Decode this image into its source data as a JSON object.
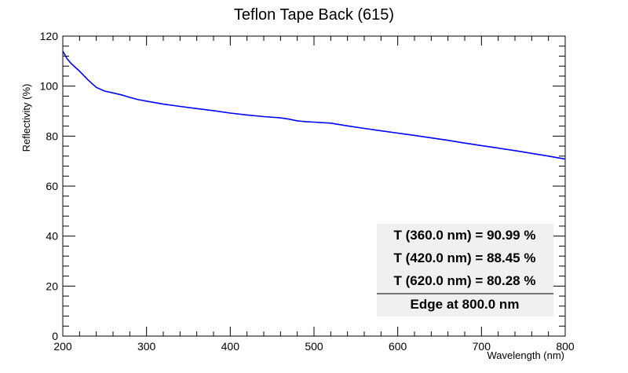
{
  "chart_data": {
    "type": "line",
    "title": "Teflon Tape Back (615)",
    "xlabel": "Wavelength (nm)",
    "ylabel": "Reflectivity (%)",
    "xlim": [
      200,
      800
    ],
    "ylim": [
      0,
      120
    ],
    "xticks": [
      200,
      300,
      400,
      500,
      600,
      700,
      800
    ],
    "yticks": [
      0,
      20,
      40,
      60,
      80,
      100,
      120
    ],
    "grid": false,
    "line_color": "#0000ff",
    "series": [
      {
        "x": [
          200,
          205,
          210,
          220,
          230,
          240,
          250,
          260,
          270,
          280,
          290,
          300,
          320,
          340,
          360,
          380,
          400,
          420,
          440,
          460,
          470,
          480,
          490,
          500,
          520,
          540,
          560,
          580,
          600,
          620,
          640,
          660,
          680,
          700,
          720,
          740,
          760,
          780,
          800
        ],
        "y": [
          114,
          111,
          109,
          106,
          102.5,
          99.5,
          98,
          97.3,
          96.5,
          95.5,
          94.6,
          94,
          92.8,
          91.9,
          91,
          90.2,
          89.2,
          88.45,
          87.8,
          87.3,
          86.8,
          86.1,
          85.8,
          85.6,
          85.2,
          84.1,
          83.1,
          82.1,
          81.2,
          80.28,
          79.3,
          78.3,
          77.2,
          76.2,
          75.2,
          74.2,
          73.1,
          72.0,
          70.8
        ]
      }
    ],
    "annotations": [
      "T (360.0 nm) = 90.99 %",
      "T (420.0 nm) = 88.45 %",
      "T (620.0 nm) = 80.28 %",
      "Edge at 800.0 nm"
    ]
  }
}
